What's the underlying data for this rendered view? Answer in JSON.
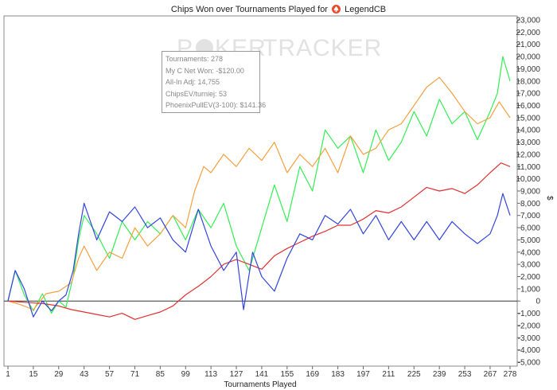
{
  "title_prefix": "Chips Won over Tournaments Played for",
  "player_name": "LegendCB",
  "logo_icon": "spade-logo-icon",
  "watermark_left": "P",
  "watermark_mid": "KER",
  "watermark_right": "TRACKER",
  "tooltip": {
    "tournaments": "Tournaments: 278",
    "net_won": "My C Net Won: -$120.00",
    "allin": "All-In Adj: 14,755",
    "chipsev": "ChipsEV/turniej: 53",
    "phoenix": "PhoenixPullEV(3-100): $141.36"
  },
  "chart_data": {
    "type": "line",
    "title": "Chips Won over Tournaments Played for LegendCB",
    "xlabel": "Tournaments Played",
    "ylabel": "$",
    "xlim": [
      1,
      278
    ],
    "ylim": [
      -5000,
      23000
    ],
    "x_ticks": [
      1,
      15,
      29,
      43,
      57,
      71,
      85,
      99,
      113,
      127,
      141,
      155,
      169,
      183,
      197,
      211,
      225,
      239,
      253,
      267,
      278
    ],
    "y_ticks": [
      -5000,
      -4000,
      -3000,
      -2000,
      -1000,
      0,
      1000,
      2000,
      3000,
      4000,
      5000,
      6000,
      7000,
      8000,
      9000,
      10000,
      11000,
      12000,
      13000,
      14000,
      15000,
      16000,
      17000,
      18000,
      19000,
      20000,
      21000,
      22000,
      23000
    ],
    "y_tick_labels": [
      "-5,000",
      "-4,000",
      "-3,000",
      "-2,000",
      "-1,000",
      "0",
      "1,000",
      "2,000",
      "3,000",
      "4,000",
      "5,000",
      "6,000",
      "7,000",
      "8,000",
      "9,000",
      "10,000",
      "11,000",
      "12,000",
      "13,000",
      "14,000",
      "15,000",
      "16,000",
      "17,000",
      "18,000",
      "19,000",
      "20,000",
      "21,000",
      "22,000",
      "23,000"
    ],
    "grid": false,
    "zero_line": true,
    "series": [
      {
        "color": "#33ee55",
        "points": [
          [
            1,
            0
          ],
          [
            5,
            2500
          ],
          [
            10,
            500
          ],
          [
            15,
            -800
          ],
          [
            20,
            600
          ],
          [
            25,
            -1000
          ],
          [
            29,
            0
          ],
          [
            33,
            -500
          ],
          [
            37,
            2000
          ],
          [
            40,
            5000
          ],
          [
            43,
            7000
          ],
          [
            50,
            5500
          ],
          [
            57,
            3500
          ],
          [
            64,
            6500
          ],
          [
            71,
            5000
          ],
          [
            78,
            6500
          ],
          [
            85,
            5500
          ],
          [
            92,
            7000
          ],
          [
            99,
            5000
          ],
          [
            106,
            7500
          ],
          [
            113,
            6000
          ],
          [
            120,
            8000
          ],
          [
            127,
            4500
          ],
          [
            134,
            2500
          ],
          [
            141,
            6000
          ],
          [
            148,
            9500
          ],
          [
            155,
            6500
          ],
          [
            162,
            11000
          ],
          [
            169,
            9000
          ],
          [
            176,
            14000
          ],
          [
            183,
            12500
          ],
          [
            190,
            13500
          ],
          [
            197,
            10500
          ],
          [
            204,
            14000
          ],
          [
            211,
            11500
          ],
          [
            218,
            13000
          ],
          [
            225,
            15500
          ],
          [
            232,
            13500
          ],
          [
            239,
            16500
          ],
          [
            246,
            14500
          ],
          [
            253,
            15500
          ],
          [
            260,
            13200
          ],
          [
            267,
            15500
          ],
          [
            271,
            17000
          ],
          [
            274,
            20000
          ],
          [
            278,
            18000
          ]
        ]
      },
      {
        "color": "#f5a040",
        "points": [
          [
            1,
            0
          ],
          [
            8,
            -300
          ],
          [
            15,
            -700
          ],
          [
            22,
            600
          ],
          [
            29,
            800
          ],
          [
            36,
            1500
          ],
          [
            40,
            3500
          ],
          [
            43,
            4500
          ],
          [
            50,
            2500
          ],
          [
            57,
            4000
          ],
          [
            64,
            3500
          ],
          [
            71,
            6000
          ],
          [
            78,
            4500
          ],
          [
            85,
            5500
          ],
          [
            92,
            7000
          ],
          [
            99,
            6000
          ],
          [
            104,
            9000
          ],
          [
            109,
            11000
          ],
          [
            113,
            10500
          ],
          [
            120,
            12000
          ],
          [
            127,
            11000
          ],
          [
            134,
            12500
          ],
          [
            141,
            11500
          ],
          [
            148,
            13000
          ],
          [
            155,
            10500
          ],
          [
            162,
            12000
          ],
          [
            169,
            11000
          ],
          [
            176,
            12500
          ],
          [
            183,
            10500
          ],
          [
            190,
            13500
          ],
          [
            197,
            12000
          ],
          [
            204,
            12500
          ],
          [
            211,
            14000
          ],
          [
            218,
            14500
          ],
          [
            225,
            16000
          ],
          [
            232,
            17500
          ],
          [
            239,
            18300
          ],
          [
            246,
            17000
          ],
          [
            253,
            15500
          ],
          [
            260,
            14500
          ],
          [
            267,
            15000
          ],
          [
            272,
            16300
          ],
          [
            278,
            15000
          ]
        ]
      },
      {
        "color": "#e03030",
        "points": [
          [
            1,
            0
          ],
          [
            10,
            -100
          ],
          [
            20,
            -200
          ],
          [
            29,
            -400
          ],
          [
            36,
            -700
          ],
          [
            43,
            -900
          ],
          [
            50,
            -1100
          ],
          [
            57,
            -1300
          ],
          [
            64,
            -1000
          ],
          [
            71,
            -1500
          ],
          [
            78,
            -1200
          ],
          [
            85,
            -900
          ],
          [
            92,
            -400
          ],
          [
            99,
            500
          ],
          [
            106,
            1200
          ],
          [
            113,
            2000
          ],
          [
            120,
            3000
          ],
          [
            127,
            3400
          ],
          [
            134,
            3000
          ],
          [
            141,
            2600
          ],
          [
            148,
            3700
          ],
          [
            155,
            4300
          ],
          [
            162,
            4800
          ],
          [
            169,
            5300
          ],
          [
            176,
            5700
          ],
          [
            183,
            6200
          ],
          [
            190,
            6200
          ],
          [
            197,
            6700
          ],
          [
            204,
            7400
          ],
          [
            211,
            7200
          ],
          [
            218,
            7700
          ],
          [
            225,
            8500
          ],
          [
            232,
            9300
          ],
          [
            239,
            9000
          ],
          [
            246,
            9200
          ],
          [
            253,
            8800
          ],
          [
            260,
            9500
          ],
          [
            267,
            10500
          ],
          [
            273,
            11300
          ],
          [
            278,
            11000
          ]
        ]
      },
      {
        "color": "#3344dd",
        "points": [
          [
            1,
            0
          ],
          [
            5,
            2500
          ],
          [
            10,
            1000
          ],
          [
            15,
            -1300
          ],
          [
            20,
            0
          ],
          [
            25,
            -800
          ],
          [
            29,
            0
          ],
          [
            33,
            500
          ],
          [
            37,
            2500
          ],
          [
            40,
            5500
          ],
          [
            43,
            8000
          ],
          [
            50,
            5000
          ],
          [
            57,
            7300
          ],
          [
            64,
            6500
          ],
          [
            71,
            7700
          ],
          [
            78,
            6000
          ],
          [
            85,
            6800
          ],
          [
            92,
            5000
          ],
          [
            99,
            4000
          ],
          [
            106,
            7500
          ],
          [
            113,
            4500
          ],
          [
            120,
            2500
          ],
          [
            127,
            4000
          ],
          [
            131,
            -700
          ],
          [
            136,
            4000
          ],
          [
            141,
            2000
          ],
          [
            148,
            800
          ],
          [
            155,
            3500
          ],
          [
            162,
            5500
          ],
          [
            169,
            5000
          ],
          [
            176,
            7000
          ],
          [
            183,
            6300
          ],
          [
            190,
            7500
          ],
          [
            197,
            5500
          ],
          [
            204,
            7000
          ],
          [
            211,
            5000
          ],
          [
            218,
            6500
          ],
          [
            225,
            5000
          ],
          [
            232,
            6500
          ],
          [
            239,
            5000
          ],
          [
            246,
            6500
          ],
          [
            253,
            5500
          ],
          [
            260,
            4700
          ],
          [
            267,
            5500
          ],
          [
            271,
            7000
          ],
          [
            274,
            8800
          ],
          [
            278,
            7000
          ]
        ]
      }
    ]
  }
}
